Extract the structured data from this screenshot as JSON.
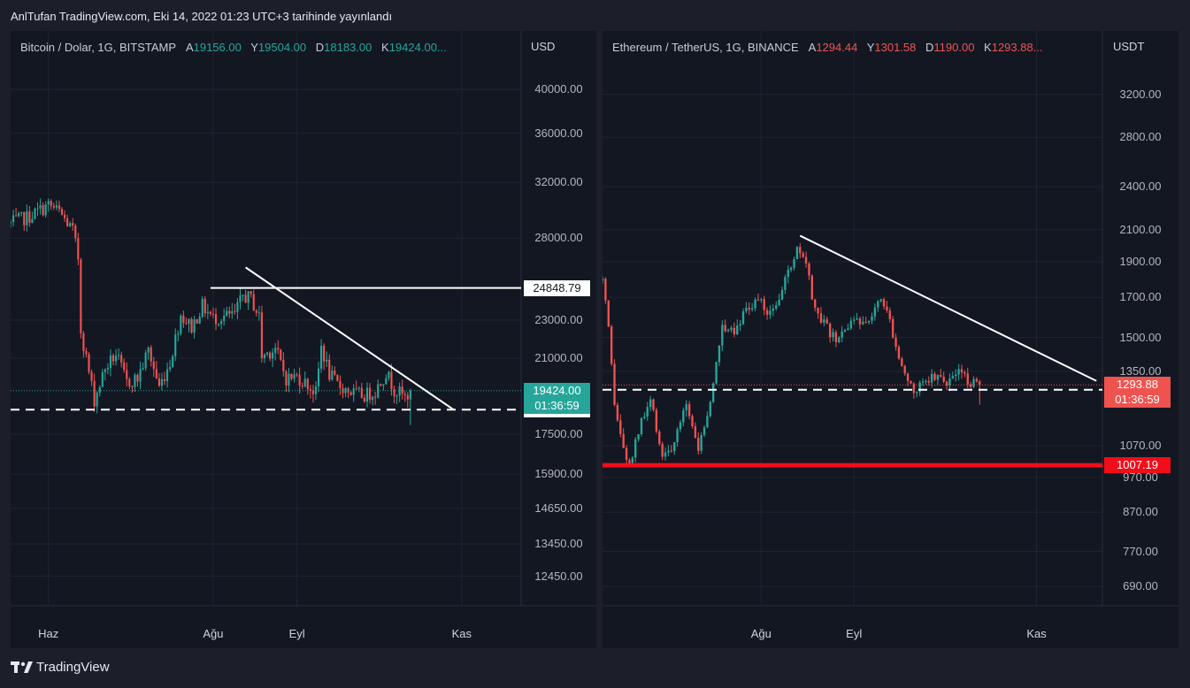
{
  "header": "AnlTufan TradingView.com, Eki 14, 2022 01:23 UTC+3 tarihinde yayınlandı",
  "footer": {
    "brand": "TradingView",
    "logo_icon": "tradingview-logo-icon"
  },
  "colors": {
    "up": "#26a69a",
    "down": "#ef5350",
    "line": "#ffffff",
    "support_red": "#f20d1a"
  },
  "chart_data": [
    {
      "type": "candlestick",
      "symbol": "Bitcoin / Dolar, 1G, BITSTAMP",
      "ohlc_labels": {
        "open_key": "A",
        "open": "19156.00",
        "high_key": "Y",
        "high": "19504.00",
        "low_key": "D",
        "low": "18183.00",
        "close_key": "K",
        "close": "19424.00..."
      },
      "currency": "USD",
      "y_scale": "log",
      "ylim": [
        11600,
        46000
      ],
      "yticks": [
        "40000.00",
        "36000.00",
        "32000.00",
        "28000.00",
        "23000.00",
        "21000.00",
        "17500.00",
        "15900.00",
        "14650.00",
        "13450.00",
        "12450.00"
      ],
      "xticks": [
        "Haz",
        "Ağu",
        "Eyl",
        "Kas"
      ],
      "x_dates": [
        "2022-06-01",
        "2022-08-01",
        "2022-09-01",
        "2022-11-01"
      ],
      "x_range": [
        "2022-05-18",
        "2022-11-23"
      ],
      "price_tags": {
        "last_price": "19424.00",
        "countdown": "01:36:59",
        "horizontal_line": "24848.79",
        "dashed_support": "18559.24"
      },
      "closes": [
        [
          "2022-05-18",
          29000
        ],
        [
          "2022-05-25",
          29500
        ],
        [
          "2022-06-01",
          30300
        ],
        [
          "2022-06-05",
          29800
        ],
        [
          "2022-06-10",
          28500
        ],
        [
          "2022-06-12",
          26700
        ],
        [
          "2022-06-13",
          22500
        ],
        [
          "2022-06-15",
          21000
        ],
        [
          "2022-06-18",
          19000
        ],
        [
          "2022-06-22",
          20500
        ],
        [
          "2022-06-26",
          21200
        ],
        [
          "2022-06-30",
          19800
        ],
        [
          "2022-07-04",
          20000
        ],
        [
          "2022-07-08",
          21400
        ],
        [
          "2022-07-12",
          19600
        ],
        [
          "2022-07-16",
          20800
        ],
        [
          "2022-07-20",
          23300
        ],
        [
          "2022-07-24",
          22600
        ],
        [
          "2022-07-28",
          23800
        ],
        [
          "2022-08-01",
          23100
        ],
        [
          "2022-08-05",
          23200
        ],
        [
          "2022-08-09",
          23300
        ],
        [
          "2022-08-12",
          24400
        ],
        [
          "2022-08-15",
          24200
        ],
        [
          "2022-08-18",
          23200
        ],
        [
          "2022-08-19",
          21100
        ],
        [
          "2022-08-24",
          21500
        ],
        [
          "2022-08-28",
          20000
        ],
        [
          "2022-09-01",
          20100
        ],
        [
          "2022-09-05",
          19700
        ],
        [
          "2022-09-08",
          19300
        ],
        [
          "2022-09-10",
          21600
        ],
        [
          "2022-09-13",
          20200
        ],
        [
          "2022-09-16",
          19700
        ],
        [
          "2022-09-19",
          19500
        ],
        [
          "2022-09-22",
          19300
        ],
        [
          "2022-09-26",
          19200
        ],
        [
          "2022-09-30",
          19400
        ],
        [
          "2022-10-04",
          20300
        ],
        [
          "2022-10-07",
          19500
        ],
        [
          "2022-10-11",
          19100
        ],
        [
          "2022-10-13",
          19424
        ]
      ],
      "trendline": [
        [
          "2022-08-13",
          26100
        ],
        [
          "2022-10-29",
          18559
        ]
      ]
    },
    {
      "type": "candlestick",
      "symbol": "Ethereum / TetherUS, 1G, BINANCE",
      "ohlc_labels": {
        "open_key": "A",
        "open": "1294.44",
        "high_key": "Y",
        "high": "1301.58",
        "low_key": "D",
        "low": "1190.00",
        "close_key": "K",
        "close": "1293.88..."
      },
      "currency": "USDT",
      "y_scale": "log",
      "ylim": [
        650,
        3900
      ],
      "yticks": [
        "3200.00",
        "2800.00",
        "2400.00",
        "2100.00",
        "1900.00",
        "1700.00",
        "1500.00",
        "1350.00",
        "1070.00",
        "970.00",
        "870.00",
        "770.00",
        "690.00"
      ],
      "xticks": [
        "Ağu",
        "Eyl",
        "Kas"
      ],
      "x_dates": [
        "2022-08-01",
        "2022-09-01",
        "2022-11-01"
      ],
      "x_range": [
        "2022-06-09",
        "2022-11-23"
      ],
      "price_tags": {
        "last_price": "1293.88",
        "countdown": "01:36:59",
        "dashed_support": "1274.56",
        "red_support": "1007.19"
      },
      "closes": [
        [
          "2022-06-09",
          1790
        ],
        [
          "2022-06-11",
          1530
        ],
        [
          "2022-06-13",
          1210
        ],
        [
          "2022-06-16",
          1060
        ],
        [
          "2022-06-18",
          1000
        ],
        [
          "2022-06-21",
          1120
        ],
        [
          "2022-06-25",
          1230
        ],
        [
          "2022-06-29",
          1040
        ],
        [
          "2022-07-03",
          1070
        ],
        [
          "2022-07-07",
          1230
        ],
        [
          "2022-07-11",
          1060
        ],
        [
          "2022-07-15",
          1220
        ],
        [
          "2022-07-19",
          1560
        ],
        [
          "2022-07-23",
          1540
        ],
        [
          "2022-07-27",
          1640
        ],
        [
          "2022-07-31",
          1690
        ],
        [
          "2022-08-03",
          1620
        ],
        [
          "2022-08-07",
          1700
        ],
        [
          "2022-08-11",
          1880
        ],
        [
          "2022-08-13",
          1970
        ],
        [
          "2022-08-16",
          1880
        ],
        [
          "2022-08-19",
          1620
        ],
        [
          "2022-08-22",
          1560
        ],
        [
          "2022-08-26",
          1480
        ],
        [
          "2022-08-30",
          1560
        ],
        [
          "2022-09-03",
          1570
        ],
        [
          "2022-09-07",
          1620
        ],
        [
          "2022-09-10",
          1720
        ],
        [
          "2022-09-13",
          1580
        ],
        [
          "2022-09-15",
          1470
        ],
        [
          "2022-09-18",
          1340
        ],
        [
          "2022-09-21",
          1250
        ],
        [
          "2022-09-24",
          1320
        ],
        [
          "2022-09-28",
          1330
        ],
        [
          "2022-10-02",
          1310
        ],
        [
          "2022-10-06",
          1350
        ],
        [
          "2022-10-09",
          1310
        ],
        [
          "2022-10-12",
          1290
        ],
        [
          "2022-10-13",
          1294
        ]
      ],
      "trendline": [
        [
          "2022-08-14",
          2060
        ],
        [
          "2022-11-21",
          1310
        ]
      ]
    }
  ]
}
